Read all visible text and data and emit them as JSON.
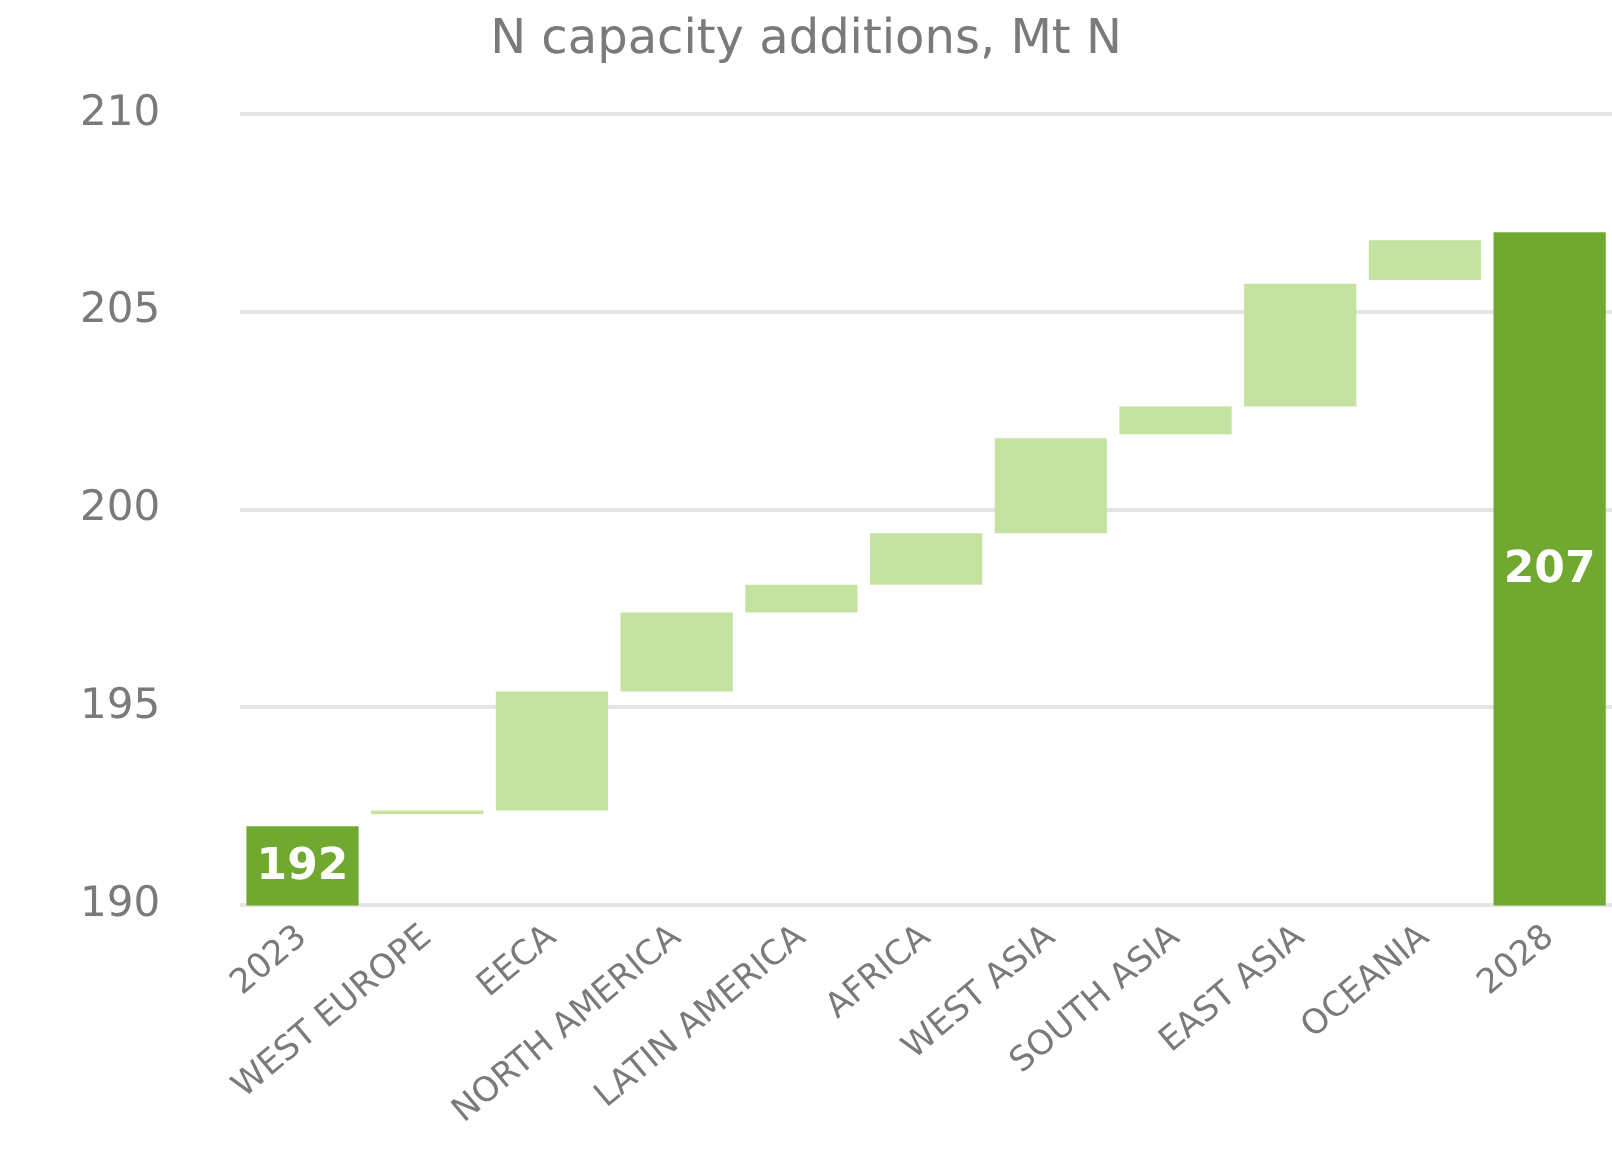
{
  "chart_data": {
    "type": "bar",
    "title": "N capacity additions, Mt N",
    "categories": [
      "2023",
      "WEST EUROPE",
      "EECA",
      "NORTH AMERICA",
      "LATIN AMERICA",
      "AFRICA",
      "WEST ASIA",
      "SOUTH ASIA",
      "EAST ASIA",
      "OCEANIA",
      "2028"
    ],
    "values": [
      192,
      0.1,
      3.0,
      2.0,
      0.7,
      1.3,
      2.4,
      0.7,
      3.1,
      1.0,
      207
    ],
    "base": [
      null,
      192.3,
      192.4,
      195.4,
      197.4,
      198.1,
      199.4,
      201.9,
      202.6,
      205.8,
      null
    ],
    "colors": [
      "#70a830",
      "#c5e3a0",
      "#c5e3a0",
      "#c5e3a0",
      "#c5e3a0",
      "#c5e3a0",
      "#c5e3a0",
      "#c5e3a0",
      "#c5e3a0",
      "#c5e3a0",
      "#70a830"
    ],
    "value_labels": [
      "192",
      null,
      null,
      null,
      null,
      null,
      null,
      null,
      null,
      null,
      "207"
    ],
    "ylim": [
      190,
      210
    ],
    "yticks": [
      190,
      195,
      200,
      205,
      210
    ],
    "grid": "y",
    "legend": false
  }
}
